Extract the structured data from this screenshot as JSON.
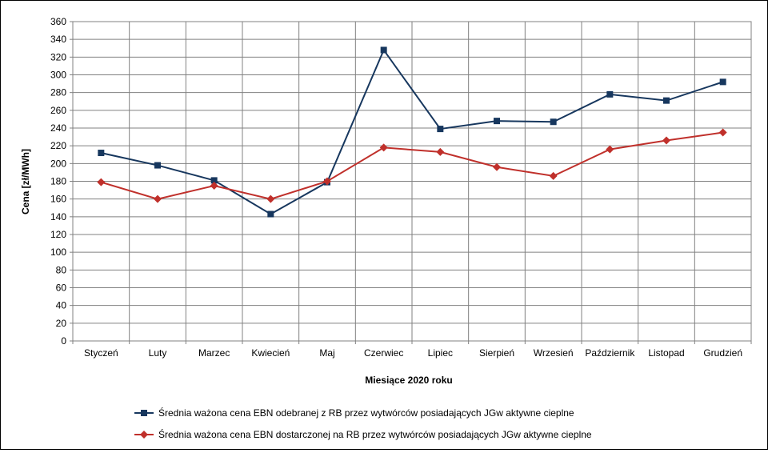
{
  "chart_data": {
    "type": "line",
    "title": "",
    "xlabel": "Miesiące 2020  roku",
    "ylabel": "Cena [zł/MWh]",
    "ylim": [
      0,
      360
    ],
    "ytick_step": 20,
    "grid": true,
    "legend_position": "bottom",
    "categories": [
      "Styczeń",
      "Luty",
      "Marzec",
      "Kwiecień",
      "Maj",
      "Czerwiec",
      "Lipiec",
      "Sierpień",
      "Wrzesień",
      "Październik",
      "Listopad",
      "Grudzień"
    ],
    "series": [
      {
        "name": "Średnia ważona cena EBN odebranej z RB przez wytwórców posiadających JGw aktywne cieplne",
        "color": "#17375e",
        "marker": "square",
        "values": [
          212,
          198,
          181,
          143,
          179,
          328,
          239,
          248,
          247,
          278,
          271,
          292
        ]
      },
      {
        "name": "Średnia ważona cena EBN dostarczonej na RB przez wytwórców posiadających JGw aktywne cieplne",
        "color": "#c0302b",
        "marker": "diamond",
        "values": [
          179,
          160,
          175,
          160,
          180,
          218,
          213,
          196,
          186,
          216,
          226,
          235
        ]
      }
    ]
  }
}
